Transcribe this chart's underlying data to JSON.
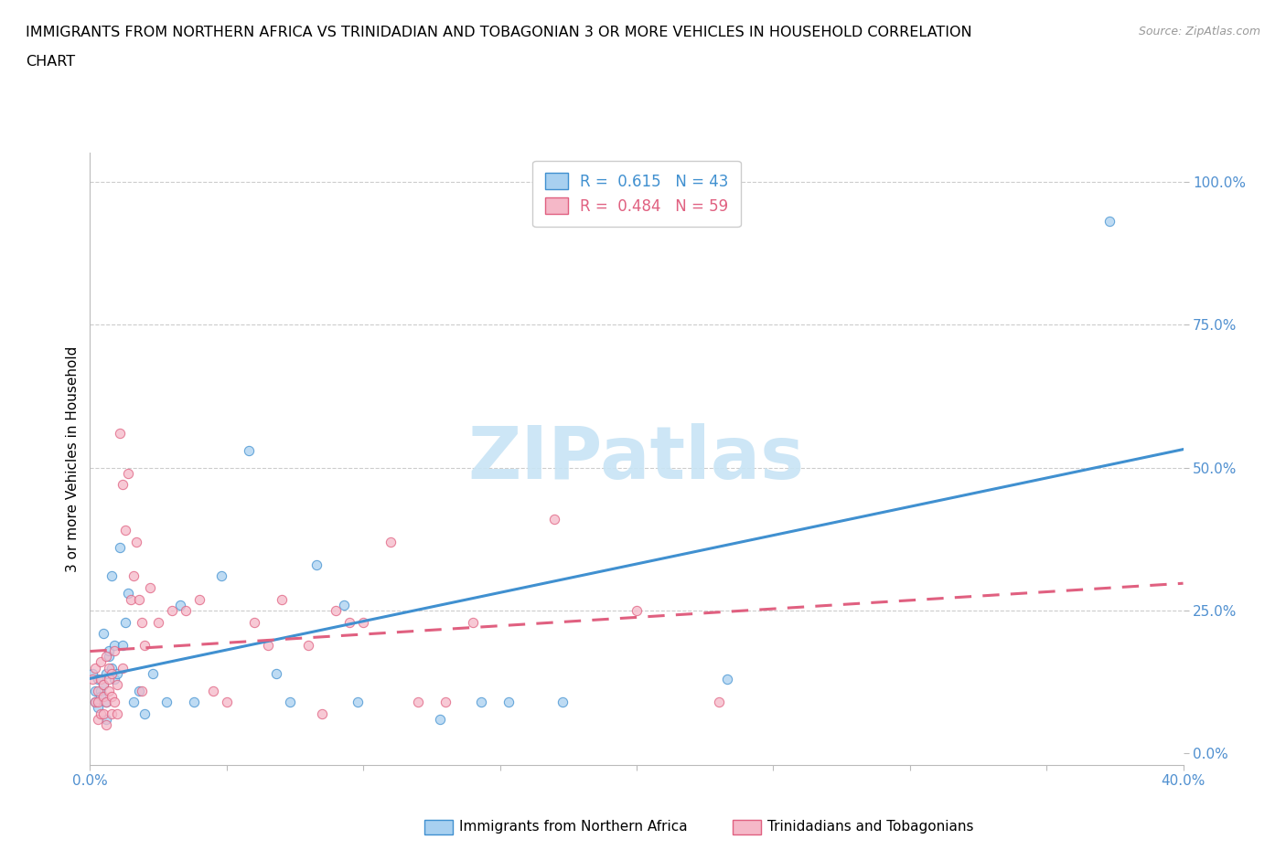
{
  "title_line1": "IMMIGRANTS FROM NORTHERN AFRICA VS TRINIDADIAN AND TOBAGONIAN 3 OR MORE VEHICLES IN HOUSEHOLD CORRELATION",
  "title_line2": "CHART",
  "source_text": "Source: ZipAtlas.com",
  "xlim": [
    0,
    0.4
  ],
  "ylim": [
    -0.02,
    1.05
  ],
  "ylabel": "3 or more Vehicles in Household",
  "legend_label_blue": "Immigrants from Northern Africa",
  "legend_label_pink": "Trinidadians and Tobagonians",
  "R_blue": 0.615,
  "N_blue": 43,
  "R_pink": 0.484,
  "N_pink": 59,
  "color_blue": "#A8D0F0",
  "color_pink": "#F5B8C8",
  "line_color_blue": "#4090D0",
  "line_color_pink": "#E06080",
  "tick_color": "#5090D0",
  "watermark_color": "#C8E4F5",
  "blue_scatter": [
    [
      0.001,
      0.14
    ],
    [
      0.002,
      0.11
    ],
    [
      0.002,
      0.09
    ],
    [
      0.003,
      0.13
    ],
    [
      0.003,
      0.08
    ],
    [
      0.004,
      0.11
    ],
    [
      0.004,
      0.1
    ],
    [
      0.005,
      0.21
    ],
    [
      0.005,
      0.12
    ],
    [
      0.006,
      0.14
    ],
    [
      0.006,
      0.09
    ],
    [
      0.006,
      0.06
    ],
    [
      0.007,
      0.17
    ],
    [
      0.007,
      0.18
    ],
    [
      0.008,
      0.15
    ],
    [
      0.008,
      0.31
    ],
    [
      0.009,
      0.13
    ],
    [
      0.009,
      0.19
    ],
    [
      0.01,
      0.14
    ],
    [
      0.011,
      0.36
    ],
    [
      0.012,
      0.19
    ],
    [
      0.013,
      0.23
    ],
    [
      0.014,
      0.28
    ],
    [
      0.016,
      0.09
    ],
    [
      0.018,
      0.11
    ],
    [
      0.02,
      0.07
    ],
    [
      0.023,
      0.14
    ],
    [
      0.028,
      0.09
    ],
    [
      0.033,
      0.26
    ],
    [
      0.038,
      0.09
    ],
    [
      0.048,
      0.31
    ],
    [
      0.058,
      0.53
    ],
    [
      0.068,
      0.14
    ],
    [
      0.073,
      0.09
    ],
    [
      0.083,
      0.33
    ],
    [
      0.093,
      0.26
    ],
    [
      0.098,
      0.09
    ],
    [
      0.128,
      0.06
    ],
    [
      0.143,
      0.09
    ],
    [
      0.153,
      0.09
    ],
    [
      0.173,
      0.09
    ],
    [
      0.233,
      0.13
    ],
    [
      0.373,
      0.93
    ]
  ],
  "pink_scatter": [
    [
      0.001,
      0.13
    ],
    [
      0.002,
      0.09
    ],
    [
      0.002,
      0.15
    ],
    [
      0.003,
      0.11
    ],
    [
      0.003,
      0.06
    ],
    [
      0.003,
      0.09
    ],
    [
      0.004,
      0.13
    ],
    [
      0.004,
      0.07
    ],
    [
      0.004,
      0.16
    ],
    [
      0.005,
      0.1
    ],
    [
      0.005,
      0.07
    ],
    [
      0.005,
      0.12
    ],
    [
      0.006,
      0.09
    ],
    [
      0.006,
      0.05
    ],
    [
      0.006,
      0.17
    ],
    [
      0.007,
      0.13
    ],
    [
      0.007,
      0.11
    ],
    [
      0.007,
      0.15
    ],
    [
      0.008,
      0.1
    ],
    [
      0.008,
      0.07
    ],
    [
      0.008,
      0.14
    ],
    [
      0.009,
      0.09
    ],
    [
      0.009,
      0.18
    ],
    [
      0.01,
      0.12
    ],
    [
      0.01,
      0.07
    ],
    [
      0.011,
      0.56
    ],
    [
      0.012,
      0.47
    ],
    [
      0.012,
      0.15
    ],
    [
      0.013,
      0.39
    ],
    [
      0.014,
      0.49
    ],
    [
      0.015,
      0.27
    ],
    [
      0.016,
      0.31
    ],
    [
      0.017,
      0.37
    ],
    [
      0.018,
      0.27
    ],
    [
      0.019,
      0.23
    ],
    [
      0.019,
      0.11
    ],
    [
      0.02,
      0.19
    ],
    [
      0.022,
      0.29
    ],
    [
      0.025,
      0.23
    ],
    [
      0.03,
      0.25
    ],
    [
      0.035,
      0.25
    ],
    [
      0.04,
      0.27
    ],
    [
      0.045,
      0.11
    ],
    [
      0.05,
      0.09
    ],
    [
      0.06,
      0.23
    ],
    [
      0.065,
      0.19
    ],
    [
      0.07,
      0.27
    ],
    [
      0.08,
      0.19
    ],
    [
      0.085,
      0.07
    ],
    [
      0.09,
      0.25
    ],
    [
      0.095,
      0.23
    ],
    [
      0.1,
      0.23
    ],
    [
      0.11,
      0.37
    ],
    [
      0.12,
      0.09
    ],
    [
      0.13,
      0.09
    ],
    [
      0.14,
      0.23
    ],
    [
      0.17,
      0.41
    ],
    [
      0.2,
      0.25
    ],
    [
      0.23,
      0.09
    ]
  ]
}
